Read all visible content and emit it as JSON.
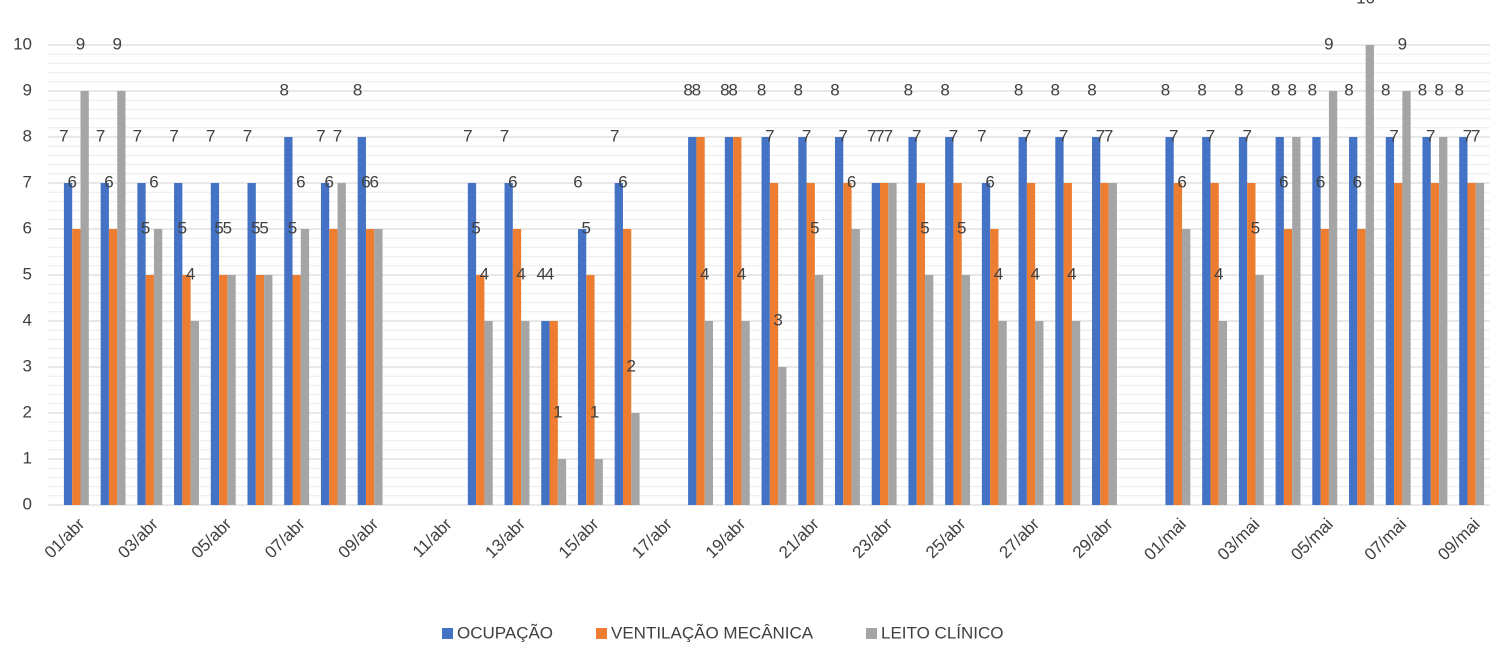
{
  "chart_data": {
    "type": "bar",
    "categories": [
      "01/abr",
      null,
      "03/abr",
      null,
      "05/abr",
      null,
      "07/abr",
      null,
      "09/abr",
      null,
      "11/abr",
      null,
      "13/abr",
      null,
      "15/abr",
      null,
      "17/abr",
      null,
      "19/abr",
      null,
      "21/abr",
      null,
      "23/abr",
      null,
      "25/abr",
      null,
      "27/abr",
      null,
      "29/abr",
      null,
      "01/mai",
      null,
      "03/mai",
      null,
      "05/mai",
      null,
      "07/mai",
      null,
      "09/mai"
    ],
    "series": [
      {
        "name": "OCUPAÇÃO",
        "color": "#4472c4",
        "values": [
          7,
          7,
          7,
          7,
          7,
          7,
          8,
          7,
          8,
          null,
          null,
          7,
          7,
          4,
          6,
          7,
          null,
          8,
          8,
          8,
          8,
          8,
          7,
          8,
          8,
          7,
          8,
          8,
          8,
          null,
          8,
          8,
          8,
          8,
          8,
          8,
          8,
          8,
          8
        ]
      },
      {
        "name": "VENTILAÇÃO MECÂNICA",
        "color": "#ed7d31",
        "values": [
          6,
          6,
          5,
          5,
          5,
          5,
          5,
          6,
          6,
          null,
          null,
          5,
          6,
          4,
          5,
          6,
          null,
          8,
          8,
          7,
          7,
          7,
          7,
          7,
          7,
          6,
          7,
          7,
          7,
          null,
          7,
          7,
          7,
          6,
          6,
          6,
          7,
          7,
          7
        ]
      },
      {
        "name": "LEITO CLÍNICO",
        "color": "#a5a5a5",
        "values": [
          9,
          9,
          6,
          4,
          5,
          5,
          6,
          7,
          6,
          null,
          null,
          4,
          4,
          1,
          1,
          2,
          null,
          4,
          4,
          3,
          5,
          6,
          7,
          5,
          5,
          4,
          4,
          4,
          7,
          null,
          6,
          4,
          5,
          8,
          9,
          10,
          9,
          8,
          7
        ]
      }
    ],
    "ylim": [
      0,
      10
    ],
    "yticks": [
      0,
      1,
      2,
      3,
      4,
      5,
      6,
      7,
      8,
      9,
      10
    ],
    "grid": true,
    "legend": "bottom"
  }
}
